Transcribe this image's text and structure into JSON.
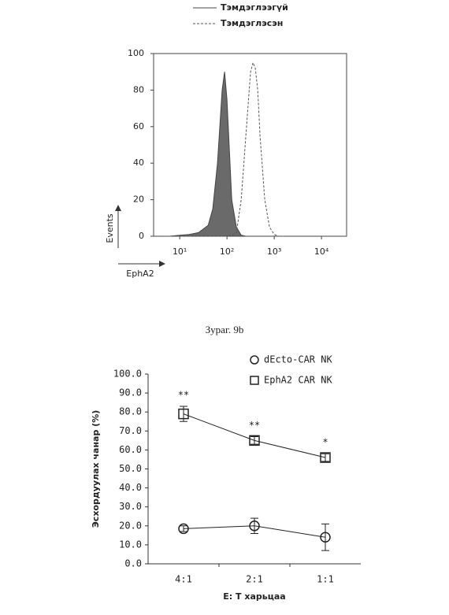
{
  "chart_data": [
    {
      "type": "line",
      "xlabel": "EphA2",
      "ylabel": "Events",
      "log_x": true,
      "xlim": [
        2.8,
        34000
      ],
      "ylim": [
        0,
        100
      ],
      "xticks": [
        {
          "value": 10,
          "label": "10¹"
        },
        {
          "value": 100,
          "label": "10²"
        },
        {
          "value": 1000,
          "label": "10³"
        },
        {
          "value": 10000,
          "label": "10⁴"
        }
      ],
      "yticks": [
        0,
        20,
        40,
        60,
        80,
        100
      ],
      "x": [
        6,
        10,
        16,
        25,
        40,
        50,
        63,
        79,
        89,
        100,
        126,
        158,
        200,
        251,
        316,
        355,
        398,
        447,
        501,
        631,
        794,
        1000,
        1259,
        1585
      ],
      "series": [
        {
          "name": "Тэмдэглээгүй",
          "color": "#444444",
          "fill": "#6a6a6a",
          "dashed": false,
          "values": [
            0,
            0.5,
            1,
            2,
            6,
            15,
            40,
            80,
            90,
            75,
            20,
            5,
            0.5,
            0,
            0,
            0,
            0,
            0,
            0,
            0,
            0,
            0,
            0,
            0
          ]
        },
        {
          "name": "Тэмдэглэсэн",
          "color": "#555555",
          "fill": null,
          "dashed": true,
          "values": [
            0,
            0,
            0,
            0,
            0,
            0,
            0,
            0,
            0,
            0,
            0.5,
            2,
            20,
            55,
            90,
            95,
            92,
            80,
            55,
            20,
            5,
            1,
            0,
            0
          ]
        }
      ]
    },
    {
      "type": "errorline",
      "xlabel": "E: T харьцаа",
      "ylabel": "Эсхордуулах чанар (%)",
      "categories": [
        "4:1",
        "2:1",
        "1:1"
      ],
      "ylim": [
        0,
        100
      ],
      "yticks": [
        {
          "value": 0,
          "label": "0.0"
        },
        {
          "value": 10,
          "label": "10.0"
        },
        {
          "value": 20,
          "label": "20.0"
        },
        {
          "value": 30,
          "label": "30.0"
        },
        {
          "value": 40,
          "label": "40.0"
        },
        {
          "value": 50,
          "label": "50.0"
        },
        {
          "value": 60,
          "label": "60.0"
        },
        {
          "value": 70,
          "label": "70.0"
        },
        {
          "value": 80,
          "label": "80.0"
        },
        {
          "value": 90,
          "label": "90.0"
        },
        {
          "value": 100,
          "label": "100.0"
        }
      ],
      "series": [
        {
          "name": "dEcto-CAR NK",
          "color": "#222222",
          "marker": "circle",
          "values": [
            18.5,
            20,
            14
          ],
          "errors": [
            1.5,
            4,
            7
          ]
        },
        {
          "name": "EphA2 CAR NK",
          "color": "#222222",
          "marker": "square",
          "values": [
            79,
            65,
            56
          ],
          "errors": [
            4,
            2,
            2
          ]
        }
      ],
      "annotations": [
        "**",
        "**",
        "*"
      ]
    }
  ],
  "caption": "Зураг. 9b"
}
